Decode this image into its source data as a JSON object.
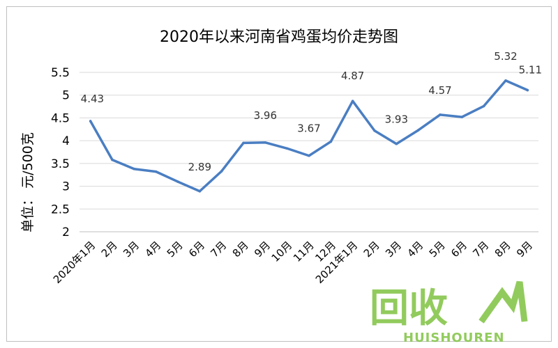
{
  "chart_data": {
    "type": "line",
    "title": "2020年以来河南省鸡蛋均价走势图",
    "ylabel": "单位：  元/500克",
    "xlabel": "",
    "ylim": [
      2,
      5.5
    ],
    "yticks": [
      "2",
      "2.5",
      "3",
      "3.5",
      "4",
      "4.5",
      "5",
      "5.5"
    ],
    "grid": true,
    "legend": "none",
    "categories": [
      "2020年1月",
      "2月",
      "3月",
      "4月",
      "5月",
      "6月",
      "7月",
      "8月",
      "9月",
      "10月",
      "11月",
      "12月",
      "2021年1月",
      "2月",
      "3月",
      "4月",
      "5月",
      "6月",
      "7月",
      "8月",
      "9月"
    ],
    "series": [
      {
        "values": [
          4.43,
          3.58,
          3.38,
          3.32,
          3.1,
          2.89,
          3.33,
          3.95,
          3.96,
          3.83,
          3.67,
          3.98,
          4.87,
          4.22,
          3.93,
          4.23,
          4.57,
          4.52,
          4.76,
          5.32,
          5.11
        ],
        "color": "#4a7ec2"
      }
    ],
    "data_labels": [
      {
        "index": 0,
        "text": "4.43"
      },
      {
        "index": 5,
        "text": "2.89"
      },
      {
        "index": 8,
        "text": "3.96"
      },
      {
        "index": 10,
        "text": "3.67"
      },
      {
        "index": 12,
        "text": "4.87"
      },
      {
        "index": 14,
        "text": "3.93"
      },
      {
        "index": 16,
        "text": "4.57"
      },
      {
        "index": 19,
        "text": "5.32"
      },
      {
        "index": 20,
        "text": "5.11"
      }
    ]
  },
  "watermark": {
    "logo_text": "回收",
    "sub_text": "HUISHOUREN",
    "color": "#7fc241"
  }
}
